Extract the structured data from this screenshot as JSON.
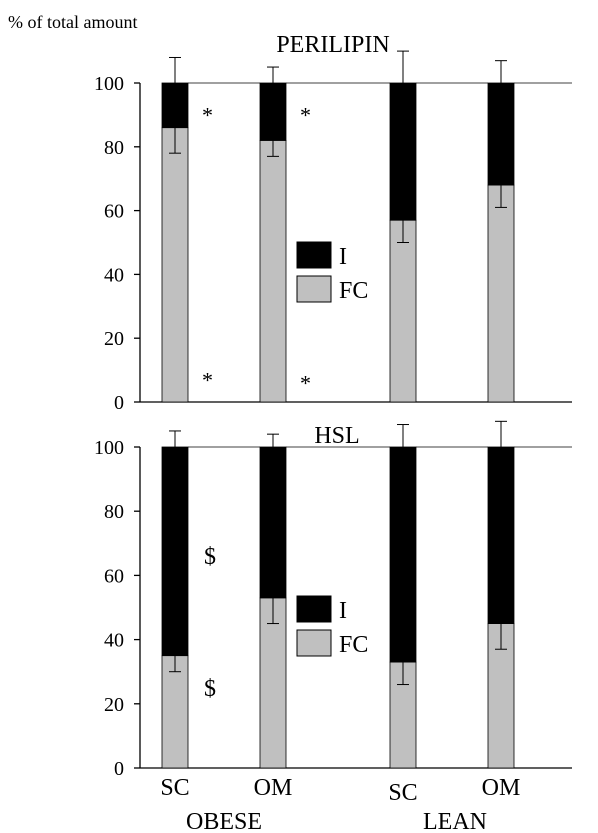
{
  "ylabel": "% of total amount",
  "colors": {
    "I": "#000000",
    "FC": "#c0c0c0"
  },
  "chart_data": [
    {
      "type": "bar",
      "stacked": true,
      "title": "PERILIPIN",
      "ylim": [
        0,
        100
      ],
      "yticks": [
        "0",
        "20",
        "40",
        "60",
        "80",
        "100"
      ],
      "categories": [
        "SC",
        "OM",
        "SC",
        "OM"
      ],
      "series": [
        {
          "name": "FC",
          "values": [
            86,
            82,
            57,
            68
          ],
          "error": [
            8,
            5,
            7,
            7
          ]
        },
        {
          "name": "I",
          "values": [
            14,
            18,
            43,
            32
          ],
          "error": [
            8,
            5,
            10,
            7
          ]
        }
      ],
      "legend": [
        "I",
        "FC"
      ],
      "annotations": [
        {
          "text": "*",
          "bar": 0,
          "y": 92
        },
        {
          "text": "*",
          "bar": 1,
          "y": 92
        },
        {
          "text": "*",
          "bar": 0,
          "y": 9
        },
        {
          "text": "*",
          "bar": 1,
          "y": 8
        }
      ]
    },
    {
      "type": "bar",
      "stacked": true,
      "title": "HSL",
      "ylim": [
        0,
        100
      ],
      "yticks": [
        "0",
        "20",
        "40",
        "60",
        "80",
        "100"
      ],
      "categories": [
        "SC",
        "OM",
        "SC",
        "OM"
      ],
      "series": [
        {
          "name": "FC",
          "values": [
            35,
            53,
            33,
            45
          ],
          "error": [
            5,
            8,
            7,
            8
          ]
        },
        {
          "name": "I",
          "values": [
            65,
            47,
            67,
            55
          ],
          "error": [
            5,
            4,
            7,
            8
          ]
        }
      ],
      "legend": [
        "I",
        "FC"
      ],
      "annotations": [
        {
          "text": "$",
          "bar": 0,
          "y": 66
        },
        {
          "text": "$",
          "bar": 0,
          "y": 25
        }
      ]
    }
  ],
  "groups": [
    "OBESE",
    "LEAN"
  ]
}
